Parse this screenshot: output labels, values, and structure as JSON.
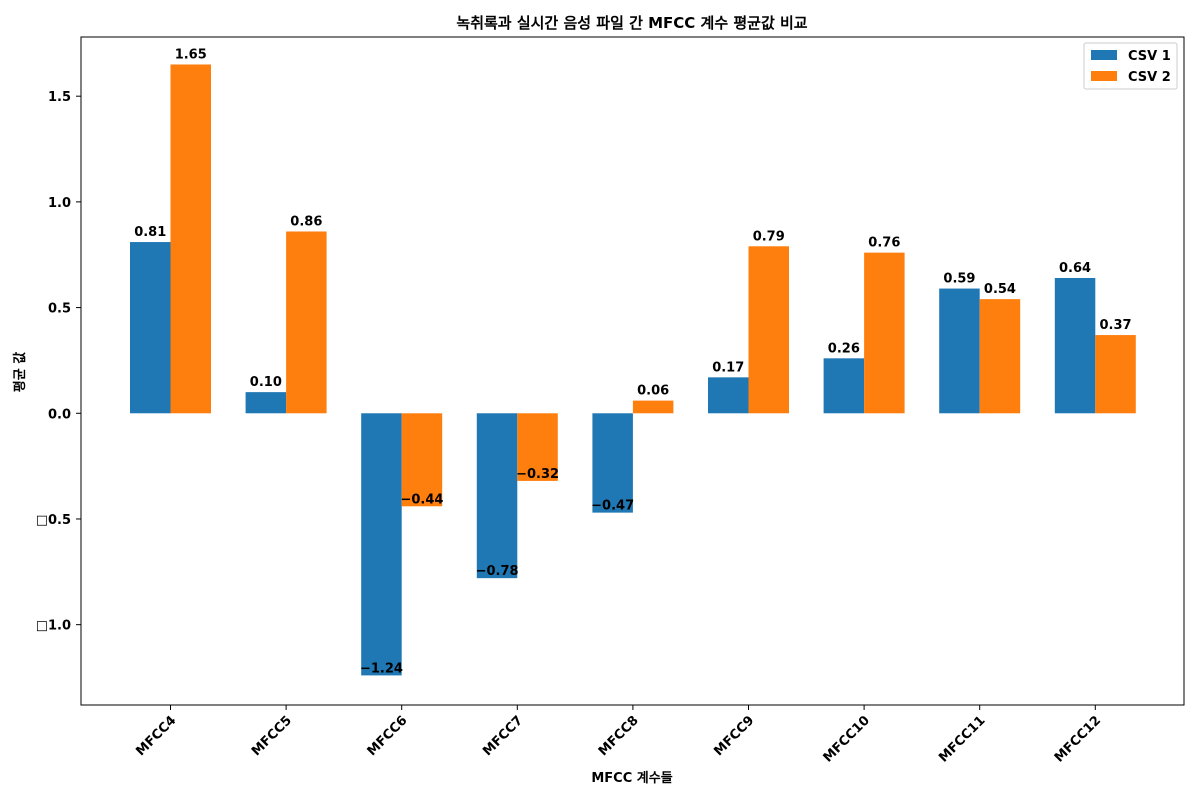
{
  "chart_data": {
    "type": "bar",
    "title": "녹취록과 실시간 음성 파일 간 MFCC 계수 평균값 비교",
    "xlabel": "MFCC 계수들",
    "ylabel": "평균 값",
    "categories": [
      "MFCC4",
      "MFCC5",
      "MFCC6",
      "MFCC7",
      "MFCC8",
      "MFCC9",
      "MFCC10",
      "MFCC11",
      "MFCC12"
    ],
    "series": [
      {
        "name": "CSV 1",
        "color": "#1f77b4",
        "values": [
          0.81,
          0.1,
          -1.24,
          -0.78,
          -0.47,
          0.17,
          0.26,
          0.59,
          0.64
        ],
        "labels": [
          "0.81",
          "0.10",
          "−1.24",
          "−0.78",
          "−0.47",
          "0.17",
          "0.26",
          "0.59",
          "0.64"
        ]
      },
      {
        "name": "CSV 2",
        "color": "#ff7f0e",
        "values": [
          1.65,
          0.86,
          -0.44,
          -0.32,
          0.06,
          0.79,
          0.76,
          0.54,
          0.37
        ],
        "labels": [
          "1.65",
          "0.86",
          "−0.44",
          "−0.32",
          "0.06",
          "0.79",
          "0.76",
          "0.54",
          "0.37"
        ]
      }
    ],
    "ylim": [
      -1.38,
      1.78
    ],
    "yticks": [
      {
        "value": 1.5,
        "label": "1.5"
      },
      {
        "value": 1.0,
        "label": "1.0"
      },
      {
        "value": 0.5,
        "label": "0.5"
      },
      {
        "value": 0.0,
        "label": "0.0"
      },
      {
        "value": -0.5,
        "label": "□0.5"
      },
      {
        "value": -1.0,
        "label": "□1.0"
      }
    ],
    "grid": false,
    "legend_position": "top-right"
  }
}
